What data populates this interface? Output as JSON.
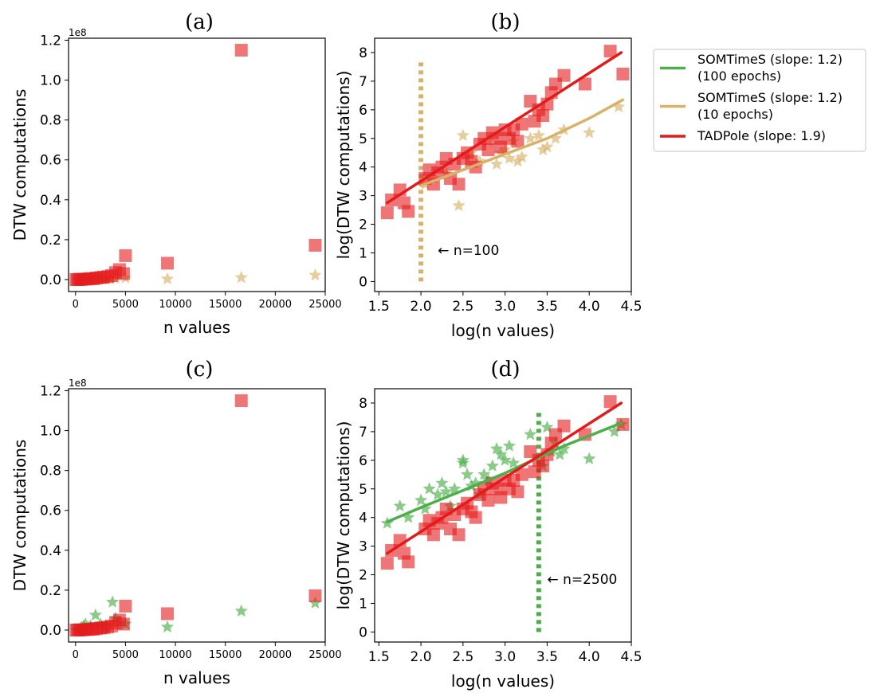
{
  "colors": {
    "somtimes_100": "#4daf4a",
    "somtimes_10": "#d9b26a",
    "tadpole": "#e41a1c"
  },
  "legend": {
    "items": [
      {
        "lines": [
          "SOMTimeS (slope: 1.2)",
          "(100 epochs)"
        ],
        "color": "#4daf4a"
      },
      {
        "lines": [
          "SOMTimeS (slope: 1.2)",
          "(10 epochs)"
        ],
        "color": "#d9b26a"
      },
      {
        "lines": [
          "TADPole (slope: 1.9)"
        ],
        "color": "#e41a1c"
      }
    ]
  },
  "chart_data": [
    {
      "panel": "(a)",
      "type": "scatter",
      "xlabel": "n values",
      "ylabel": "DTW computations",
      "offset_text": "1e8",
      "xlim": [
        -700,
        25000
      ],
      "ylim": [
        -0.06,
        1.21
      ],
      "xticks": [
        0,
        5000,
        10000,
        15000,
        20000,
        25000
      ],
      "yticks": [
        0.0,
        0.2,
        0.4,
        0.6,
        0.8,
        1.0,
        1.2
      ],
      "series": [
        {
          "name": "SOMTimeS (10 epochs)",
          "marker": "star",
          "color": "#d9b26a",
          "x": [
            100,
            300,
            500,
            800,
            1000,
            1500,
            2000,
            2500,
            3000,
            3500,
            4000,
            5000,
            9200,
            16600,
            24000
          ],
          "y": [
            0.0,
            0.0,
            0.0,
            0.001,
            0.001,
            0.002,
            0.002,
            0.003,
            0.004,
            0.005,
            0.006,
            0.008,
            0.003,
            0.01,
            0.022
          ]
        },
        {
          "name": "TADPole",
          "marker": "square",
          "color": "#e41a1c",
          "x": [
            50,
            200,
            400,
            600,
            900,
            1200,
            1500,
            1800,
            2100,
            2500,
            2800,
            3200,
            3600,
            4000,
            4400,
            4800,
            5000,
            9200,
            16600,
            24000
          ],
          "y": [
            0.0,
            0.0,
            0.001,
            0.001,
            0.002,
            0.003,
            0.005,
            0.004,
            0.008,
            0.01,
            0.012,
            0.015,
            0.02,
            0.035,
            0.05,
            0.03,
            0.12,
            0.082,
            1.15,
            0.172
          ]
        }
      ]
    },
    {
      "panel": "(b)",
      "type": "scatter",
      "xlabel": "log(n values)",
      "ylabel": "log(DTW computations)",
      "xlim": [
        1.45,
        4.5
      ],
      "ylim": [
        -0.35,
        8.5
      ],
      "xticks": [
        1.5,
        2.0,
        2.5,
        3.0,
        3.5,
        4.0,
        4.5
      ],
      "yticks": [
        0,
        1,
        2,
        3,
        4,
        5,
        6,
        7,
        8
      ],
      "vline": {
        "x": 2.0,
        "ymin": 0,
        "ymax": 7.7,
        "color": "#d9b26a"
      },
      "annotation": {
        "text": "← n=100",
        "x": 2.2,
        "y": 1.1
      },
      "lines": [
        {
          "name": "SOMTimeS (10 epochs)",
          "color": "#d9b26a",
          "x": [
            2.0,
            2.5,
            3.0,
            3.5,
            4.0,
            4.4
          ],
          "y": [
            3.35,
            3.9,
            4.45,
            5.0,
            5.7,
            6.35
          ]
        },
        {
          "name": "TADPole",
          "color": "#e41a1c",
          "x": [
            1.6,
            4.38
          ],
          "y": [
            2.75,
            8.0
          ]
        }
      ],
      "series": [
        {
          "name": "SOMTimeS (10 epochs)",
          "marker": "star",
          "color": "#d9b26a",
          "x": [
            2.05,
            2.15,
            2.3,
            2.45,
            2.5,
            2.6,
            2.7,
            2.8,
            2.9,
            2.95,
            3.0,
            3.05,
            3.1,
            3.15,
            3.2,
            3.3,
            3.4,
            3.45,
            3.5,
            3.6,
            3.7,
            4.0,
            4.35
          ],
          "y": [
            3.4,
            3.6,
            3.8,
            2.65,
            5.1,
            4.5,
            4.2,
            4.9,
            4.1,
            4.5,
            4.6,
            4.3,
            4.9,
            4.2,
            4.35,
            5.0,
            5.1,
            4.6,
            4.7,
            5.0,
            5.3,
            5.2,
            6.1
          ]
        },
        {
          "name": "TADPole",
          "marker": "square",
          "color": "#e41a1c",
          "x": [
            1.6,
            1.65,
            1.75,
            1.8,
            1.85,
            2.05,
            2.1,
            2.15,
            2.2,
            2.25,
            2.3,
            2.35,
            2.4,
            2.45,
            2.5,
            2.55,
            2.6,
            2.65,
            2.7,
            2.75,
            2.8,
            2.85,
            2.9,
            2.95,
            3.0,
            3.05,
            3.1,
            3.15,
            3.2,
            3.3,
            3.35,
            3.4,
            3.45,
            3.5,
            3.55,
            3.6,
            3.7,
            3.95,
            4.25,
            4.4
          ],
          "y": [
            2.4,
            2.85,
            3.2,
            2.75,
            2.45,
            3.6,
            3.9,
            3.4,
            3.8,
            4.0,
            4.3,
            3.6,
            4.1,
            3.4,
            4.3,
            4.5,
            4.2,
            4.0,
            4.8,
            5.0,
            4.6,
            5.2,
            5.0,
            4.7,
            5.3,
            5.0,
            5.3,
            4.9,
            5.5,
            6.3,
            5.6,
            6.0,
            5.8,
            6.2,
            6.6,
            6.9,
            7.2,
            6.9,
            8.05,
            7.25
          ]
        }
      ]
    },
    {
      "panel": "(c)",
      "type": "scatter",
      "xlabel": "n values",
      "ylabel": "DTW computations",
      "offset_text": "1e8",
      "xlim": [
        -700,
        25000
      ],
      "ylim": [
        -0.06,
        1.21
      ],
      "xticks": [
        0,
        5000,
        10000,
        15000,
        20000,
        25000
      ],
      "yticks": [
        0.0,
        0.2,
        0.4,
        0.6,
        0.8,
        1.0,
        1.2
      ],
      "series": [
        {
          "name": "SOMTimeS (100 epochs)",
          "marker": "star",
          "color": "#4daf4a",
          "x": [
            100,
            300,
            500,
            800,
            1000,
            1500,
            2000,
            2500,
            3000,
            3700,
            4000,
            5000,
            9200,
            16600,
            24000
          ],
          "y": [
            0.0,
            0.001,
            0.002,
            0.02,
            0.03,
            0.02,
            0.075,
            0.03,
            0.02,
            0.14,
            0.06,
            0.03,
            0.015,
            0.095,
            0.135
          ]
        },
        {
          "name": "TADPole",
          "marker": "square",
          "color": "#e41a1c",
          "x": [
            50,
            200,
            400,
            600,
            900,
            1200,
            1500,
            1800,
            2100,
            2500,
            2800,
            3200,
            3600,
            4000,
            4400,
            4800,
            5000,
            9200,
            16600,
            24000
          ],
          "y": [
            0.0,
            0.0,
            0.001,
            0.001,
            0.002,
            0.003,
            0.005,
            0.004,
            0.008,
            0.01,
            0.012,
            0.015,
            0.02,
            0.035,
            0.05,
            0.03,
            0.12,
            0.082,
            1.15,
            0.172
          ]
        }
      ]
    },
    {
      "panel": "(d)",
      "type": "scatter",
      "xlabel": "log(n values)",
      "ylabel": "log(DTW computations)",
      "xlim": [
        1.45,
        4.5
      ],
      "ylim": [
        -0.35,
        8.5
      ],
      "xticks": [
        1.5,
        2.0,
        2.5,
        3.0,
        3.5,
        4.0,
        4.5
      ],
      "yticks": [
        0,
        1,
        2,
        3,
        4,
        5,
        6,
        7,
        8
      ],
      "vline": {
        "x": 3.4,
        "ymin": 0,
        "ymax": 7.7,
        "color": "#4daf4a"
      },
      "annotation": {
        "text": "← n=2500",
        "x": 3.5,
        "y": 1.85
      },
      "lines": [
        {
          "name": "SOMTimeS (100 epochs)",
          "color": "#4daf4a",
          "x": [
            1.6,
            2.0,
            2.5,
            3.0,
            3.4,
            3.7,
            4.38
          ],
          "y": [
            3.85,
            4.35,
            4.95,
            5.55,
            6.1,
            6.5,
            7.3
          ]
        },
        {
          "name": "TADPole",
          "color": "#e41a1c",
          "x": [
            1.6,
            4.38
          ],
          "y": [
            2.75,
            8.0
          ]
        }
      ],
      "series": [
        {
          "name": "SOMTimeS (100 epochs)",
          "marker": "star",
          "color": "#4daf4a",
          "x": [
            1.6,
            1.75,
            1.85,
            2.0,
            2.05,
            2.1,
            2.2,
            2.25,
            2.3,
            2.35,
            2.4,
            2.5,
            2.5,
            2.55,
            2.6,
            2.65,
            2.7,
            2.75,
            2.8,
            2.85,
            2.9,
            2.95,
            3.0,
            3.05,
            3.1,
            3.3,
            3.45,
            3.5,
            3.55,
            3.6,
            3.65,
            3.7,
            4.0,
            4.3,
            4.38
          ],
          "y": [
            3.8,
            4.4,
            4.0,
            4.6,
            4.3,
            5.0,
            4.8,
            5.2,
            4.9,
            4.4,
            5.0,
            6.0,
            5.9,
            5.5,
            5.1,
            5.2,
            4.8,
            5.5,
            5.3,
            5.8,
            6.4,
            6.2,
            6.0,
            6.5,
            5.9,
            6.9,
            5.8,
            7.15,
            6.3,
            6.6,
            6.2,
            6.4,
            6.05,
            7.0,
            7.25
          ]
        },
        {
          "name": "TADPole",
          "marker": "square",
          "color": "#e41a1c",
          "x": [
            1.6,
            1.65,
            1.75,
            1.8,
            1.85,
            2.05,
            2.1,
            2.15,
            2.2,
            2.25,
            2.3,
            2.35,
            2.4,
            2.45,
            2.5,
            2.55,
            2.6,
            2.65,
            2.7,
            2.75,
            2.8,
            2.85,
            2.9,
            2.95,
            3.0,
            3.05,
            3.1,
            3.15,
            3.2,
            3.3,
            3.35,
            3.4,
            3.45,
            3.5,
            3.55,
            3.6,
            3.7,
            3.95,
            4.25,
            4.4
          ],
          "y": [
            2.4,
            2.85,
            3.2,
            2.75,
            2.45,
            3.6,
            3.9,
            3.4,
            3.8,
            4.0,
            4.3,
            3.6,
            4.1,
            3.4,
            4.3,
            4.5,
            4.2,
            4.0,
            4.8,
            5.0,
            4.6,
            5.2,
            5.0,
            4.7,
            5.3,
            5.0,
            5.3,
            4.9,
            5.5,
            6.3,
            5.6,
            6.0,
            5.8,
            6.2,
            6.6,
            6.9,
            7.2,
            6.9,
            8.05,
            7.25
          ]
        }
      ]
    }
  ]
}
